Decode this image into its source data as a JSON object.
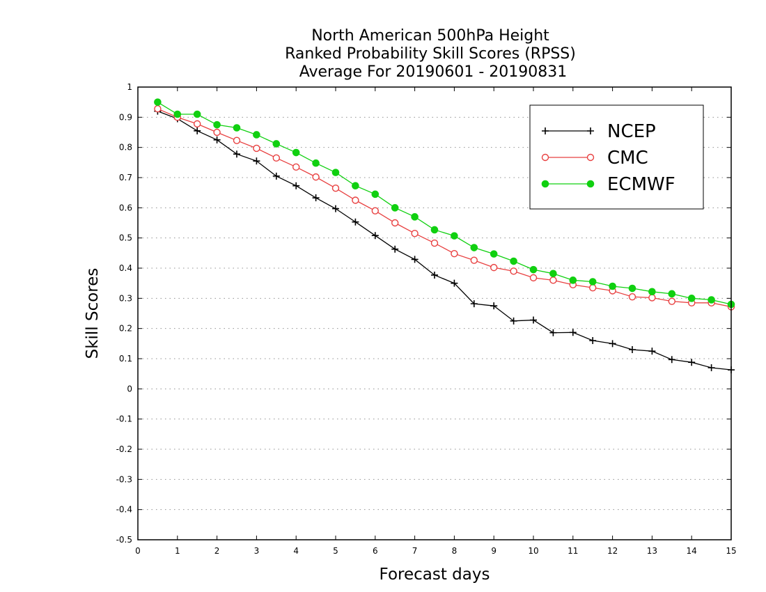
{
  "chart_data": {
    "type": "line",
    "title": [
      "North American 500hPa Height",
      "Ranked Probability Skill Scores (RPSS)",
      "Average For 20190601 - 20190831"
    ],
    "xlabel": "Forecast days",
    "ylabel": "Skill Scores",
    "xlim": [
      0,
      15
    ],
    "ylim": [
      -0.5,
      1
    ],
    "xticks": [
      "0",
      "1",
      "2",
      "3",
      "4",
      "5",
      "6",
      "7",
      "8",
      "9",
      "10",
      "11",
      "12",
      "13",
      "14",
      "15"
    ],
    "yticks": [
      "1",
      "0.9",
      "0.8",
      "0.7",
      "0.6",
      "0.5",
      "0.4",
      "0.3",
      "0.2",
      "0.1",
      "0",
      "-0.1",
      "-0.2",
      "-0.3",
      "-0.4",
      "-0.5"
    ],
    "grid": "horizontal dotted",
    "legend_position": "top-right",
    "x": [
      0.5,
      1,
      1.5,
      2,
      2.5,
      3,
      3.5,
      4,
      4.5,
      5,
      5.5,
      6,
      6.5,
      7,
      7.5,
      8,
      8.5,
      9,
      9.5,
      10,
      10.5,
      11,
      11.5,
      12,
      12.5,
      13,
      13.5,
      14,
      14.5,
      15
    ],
    "series": [
      {
        "name": "NCEP",
        "color": "#000000",
        "marker": "plus",
        "values": [
          0.92,
          0.895,
          0.855,
          0.825,
          0.778,
          0.755,
          0.705,
          0.673,
          0.633,
          0.597,
          0.553,
          0.508,
          0.463,
          0.429,
          0.377,
          0.35,
          0.282,
          0.275,
          0.225,
          0.228,
          0.186,
          0.187,
          0.16,
          0.15,
          0.13,
          0.125,
          0.097,
          0.088,
          0.07,
          0.063
        ]
      },
      {
        "name": "CMC",
        "color": "#e84040",
        "marker": "open-circle",
        "values": [
          0.928,
          0.9,
          0.878,
          0.85,
          0.823,
          0.797,
          0.765,
          0.735,
          0.702,
          0.665,
          0.625,
          0.59,
          0.55,
          0.515,
          0.483,
          0.448,
          0.426,
          0.402,
          0.39,
          0.368,
          0.36,
          0.345,
          0.335,
          0.325,
          0.305,
          0.302,
          0.29,
          0.285,
          0.285,
          0.272
        ]
      },
      {
        "name": "ECMWF",
        "color": "#10d010",
        "marker": "filled-circle",
        "values": [
          0.95,
          0.91,
          0.91,
          0.875,
          0.865,
          0.842,
          0.812,
          0.783,
          0.748,
          0.717,
          0.673,
          0.645,
          0.6,
          0.57,
          0.527,
          0.507,
          0.468,
          0.447,
          0.423,
          0.395,
          0.382,
          0.36,
          0.355,
          0.34,
          0.333,
          0.322,
          0.315,
          0.3,
          0.295,
          0.28
        ]
      }
    ]
  }
}
